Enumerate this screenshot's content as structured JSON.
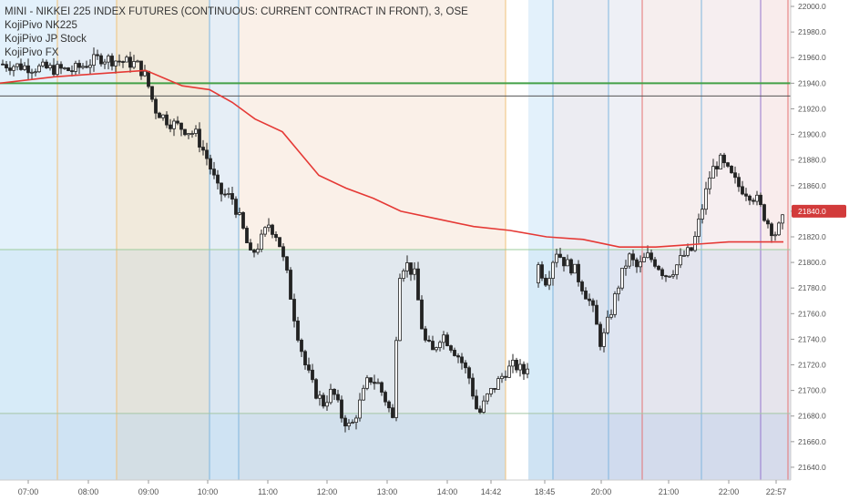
{
  "legend": {
    "title": "MINI - NIKKEI 225 INDEX FUTURES (CONTINUOUS: CURRENT CONTRACT IN FRONT), 3, OSE",
    "indicators": [
      "KojiPivo NK225",
      "KojiPivo JP Stock",
      "KojiPivo FX"
    ]
  },
  "chart_data": {
    "type": "candlestick",
    "title": "MINI - NIKKEI 225 INDEX FUTURES (CONTINUOUS: CURRENT CONTRACT IN FRONT), 3, OSE",
    "ylim": [
      21630,
      22005
    ],
    "y_ticks": [
      22000,
      21980,
      21960,
      21940,
      21920,
      21900,
      21880,
      21860,
      21840,
      21820,
      21800,
      21780,
      21760,
      21740,
      21720,
      21700,
      21680,
      21660,
      21640
    ],
    "x_ticks": [
      "07:00",
      "08:00",
      "09:00",
      "10:00",
      "11:00",
      "12:00",
      "13:00",
      "14:00",
      "14:42",
      "18:45",
      "20:00",
      "21:00",
      "22:00",
      "22:57"
    ],
    "horizontal_levels": [
      {
        "value": 21940,
        "color": "#43a047"
      },
      {
        "value": 21930,
        "color": "#555555"
      }
    ],
    "zone_boundaries": [
      21810,
      21682
    ],
    "moving_average": {
      "color": "#e53935",
      "points": [
        [
          0,
          21940
        ],
        [
          60,
          21945
        ],
        [
          120,
          21948
        ],
        [
          160,
          21950
        ],
        [
          180,
          21944
        ],
        [
          200,
          21938
        ],
        [
          230,
          21935
        ],
        [
          255,
          21925
        ],
        [
          280,
          21912
        ],
        [
          310,
          21902
        ],
        [
          330,
          21885
        ],
        [
          350,
          21868
        ],
        [
          380,
          21858
        ],
        [
          410,
          21850
        ],
        [
          440,
          21840
        ],
        [
          480,
          21834
        ],
        [
          520,
          21828
        ],
        [
          560,
          21825
        ],
        [
          600,
          21820
        ],
        [
          640,
          21818
        ],
        [
          680,
          21812
        ],
        [
          720,
          21812
        ],
        [
          760,
          21814
        ],
        [
          800,
          21816
        ],
        [
          860,
          21816
        ]
      ]
    },
    "price_path": [
      [
        0,
        21955
      ],
      [
        40,
        21952
      ],
      [
        80,
        21950
      ],
      [
        110,
        21960
      ],
      [
        150,
        21955
      ],
      [
        160,
        21945
      ],
      [
        170,
        21920
      ],
      [
        185,
        21910
      ],
      [
        200,
        21905
      ],
      [
        215,
        21900
      ],
      [
        228,
        21880
      ],
      [
        240,
        21855
      ],
      [
        255,
        21850
      ],
      [
        265,
        21830
      ],
      [
        275,
        21805
      ],
      [
        285,
        21815
      ],
      [
        295,
        21830
      ],
      [
        305,
        21820
      ],
      [
        315,
        21790
      ],
      [
        325,
        21750
      ],
      [
        335,
        21720
      ],
      [
        345,
        21700
      ],
      [
        355,
        21690
      ],
      [
        365,
        21700
      ],
      [
        375,
        21680
      ],
      [
        385,
        21670
      ],
      [
        395,
        21690
      ],
      [
        405,
        21710
      ],
      [
        415,
        21705
      ],
      [
        425,
        21690
      ],
      [
        432,
        21675
      ],
      [
        437,
        21790
      ],
      [
        445,
        21800
      ],
      [
        455,
        21790
      ],
      [
        465,
        21740
      ],
      [
        475,
        21730
      ],
      [
        485,
        21745
      ],
      [
        495,
        21735
      ],
      [
        505,
        21725
      ],
      [
        515,
        21710
      ],
      [
        525,
        21680
      ],
      [
        535,
        21695
      ],
      [
        545,
        21705
      ],
      [
        555,
        21715
      ],
      [
        565,
        21720
      ],
      [
        578,
        21712
      ],
      [
        589,
        21800
      ],
      [
        600,
        21785
      ],
      [
        610,
        21810
      ],
      [
        620,
        21800
      ],
      [
        630,
        21795
      ],
      [
        640,
        21780
      ],
      [
        650,
        21765
      ],
      [
        660,
        21735
      ],
      [
        670,
        21760
      ],
      [
        680,
        21785
      ],
      [
        690,
        21805
      ],
      [
        700,
        21795
      ],
      [
        710,
        21805
      ],
      [
        720,
        21800
      ],
      [
        730,
        21790
      ],
      [
        740,
        21795
      ],
      [
        750,
        21805
      ],
      [
        760,
        21810
      ],
      [
        770,
        21840
      ],
      [
        780,
        21870
      ],
      [
        790,
        21880
      ],
      [
        800,
        21870
      ],
      [
        810,
        21860
      ],
      [
        820,
        21855
      ],
      [
        830,
        21850
      ],
      [
        840,
        21835
      ],
      [
        850,
        21822
      ],
      [
        858,
        21830
      ],
      [
        862,
        21840
      ]
    ],
    "last_value": 21840,
    "last_label": "22:57",
    "colors": {
      "up": "#ffffff",
      "down": "#222222",
      "wick": "#222222"
    }
  }
}
